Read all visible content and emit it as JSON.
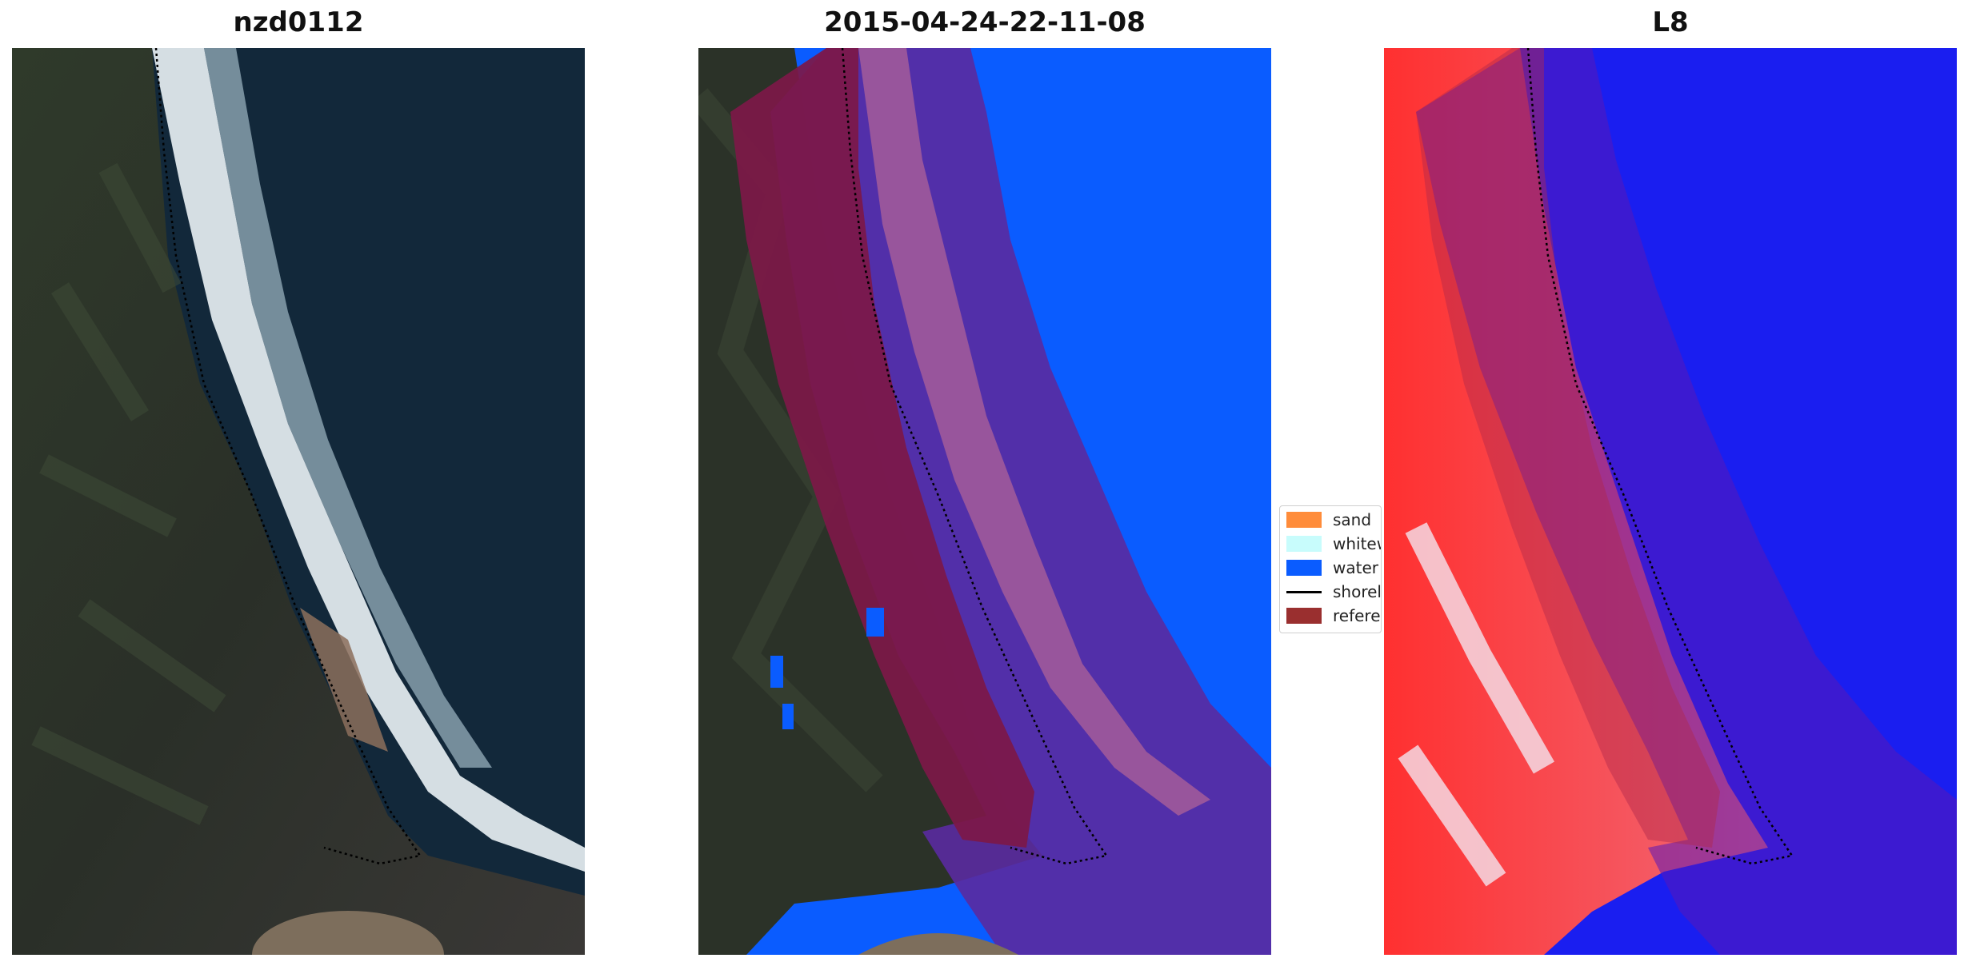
{
  "panels": [
    {
      "title": "nzd0112"
    },
    {
      "title": "2015-04-24-22-11-08"
    },
    {
      "title": "L8"
    }
  ],
  "legend": {
    "items": [
      {
        "label": "sand",
        "color": "#ff8c3a",
        "type": "patch"
      },
      {
        "label": "whitewater",
        "color": "#c8fcfc",
        "type": "patch"
      },
      {
        "label": "water",
        "color": "#0a5cff",
        "type": "patch"
      },
      {
        "label": "shoreline",
        "color": "#000000",
        "type": "line"
      },
      {
        "label": "reference shoreline buffer",
        "color": "#9a2f2f",
        "type": "patch"
      }
    ]
  },
  "colors": {
    "land_dark": "#2b3228",
    "ocean_dark": "#12283a",
    "surf_white": "#e6eef2",
    "water_class": "#0a5cff",
    "buffer_purple": "#6b2a8c",
    "buffer_red": "#7d1848",
    "index_red": "#e8334a",
    "index_blue": "#1a1ef0"
  }
}
